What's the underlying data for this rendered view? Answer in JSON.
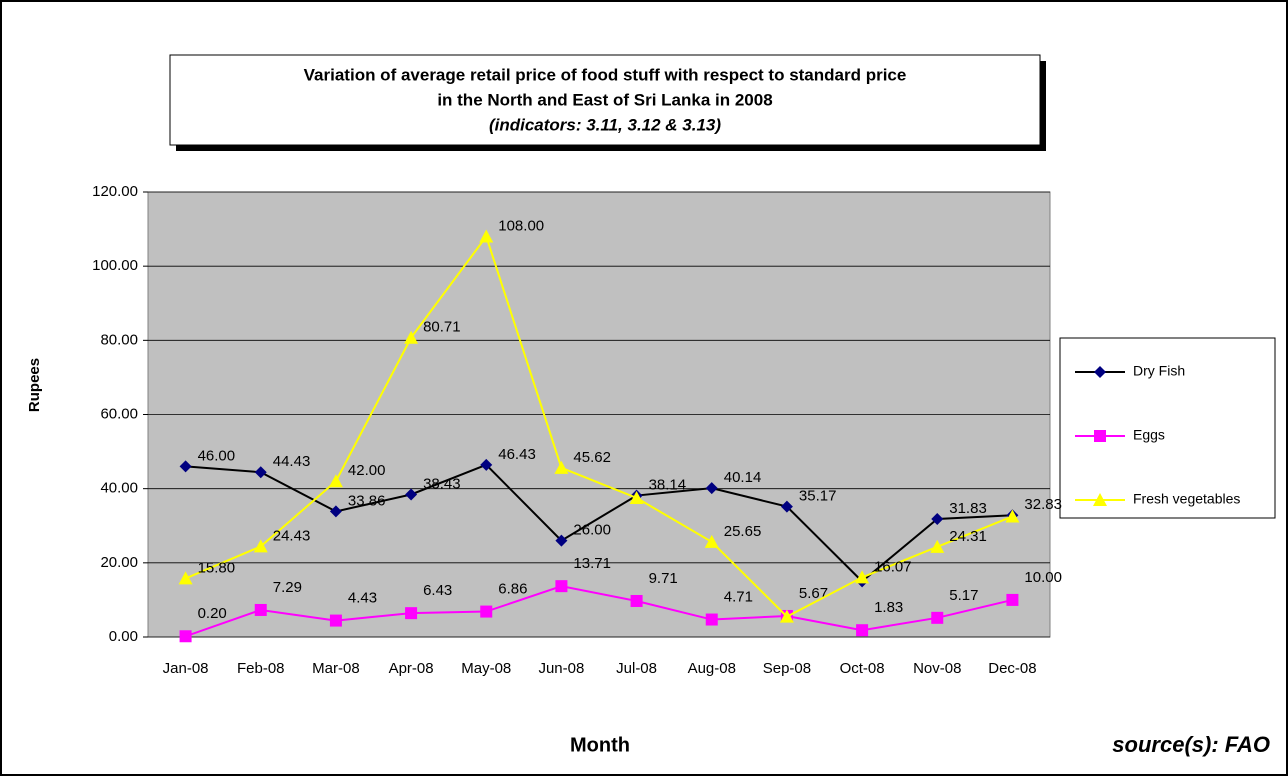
{
  "chart_data": {
    "type": "line",
    "title": "Variation of average retail price of food stuff with respect to standard price",
    "subtitle": "in the North and East of Sri Lanka in 2008",
    "subtitle2": "(indicators: 3.11, 3.12 & 3.13)",
    "x_label": "Month",
    "y_label": "Rupees",
    "source": "source(s): FAO",
    "categories": [
      "Jan-08",
      "Feb-08",
      "Mar-08",
      "Apr-08",
      "May-08",
      "Jun-08",
      "Jul-08",
      "Aug-08",
      "Sep-08",
      "Oct-08",
      "Nov-08",
      "Dec-08"
    ],
    "series": [
      {
        "name": "Dry Fish",
        "color": "#000080",
        "line_color": "#000000",
        "marker": "diamond",
        "values": [
          46.0,
          44.43,
          33.86,
          38.43,
          46.43,
          26.0,
          38.14,
          40.14,
          35.17,
          15.0,
          31.83,
          32.83
        ],
        "value_labels": [
          "46.00",
          "44.43",
          "33.86",
          "38.43",
          "46.43",
          "26.00",
          "38.14",
          "40.14",
          "35.17",
          null,
          "31.83",
          "32.83"
        ]
      },
      {
        "name": "Eggs",
        "color": "#ff00ff",
        "line_color": "#ff00ff",
        "marker": "square",
        "values": [
          0.2,
          7.29,
          4.43,
          6.43,
          6.86,
          13.71,
          9.71,
          4.71,
          5.67,
          1.83,
          5.17,
          10.0
        ],
        "value_labels": [
          "0.20",
          "7.29",
          "4.43",
          "6.43",
          "6.86",
          "13.71",
          "9.71",
          "4.71",
          "5.67",
          "1.83",
          "5.17",
          "10.00"
        ]
      },
      {
        "name": "Fresh vegetables",
        "color": "#ffff00",
        "line_color": "#ffff00",
        "marker": "triangle",
        "values": [
          15.8,
          24.43,
          42.0,
          80.71,
          108.0,
          45.62,
          37.5,
          25.65,
          5.5,
          16.07,
          24.31,
          32.5
        ],
        "value_labels": [
          "15.80",
          "24.43",
          "42.00",
          "80.71",
          "108.00",
          "45.62",
          null,
          "25.65",
          null,
          "16.07",
          "24.31",
          null
        ]
      }
    ],
    "ylim": [
      0,
      120
    ],
    "yticks": [
      {
        "value": 0,
        "label": "0.00"
      },
      {
        "value": 20,
        "label": "20.00"
      },
      {
        "value": 40,
        "label": "40.00"
      },
      {
        "value": 60,
        "label": "60.00"
      },
      {
        "value": 80,
        "label": "80.00"
      },
      {
        "value": 100,
        "label": "100.00"
      },
      {
        "value": 120,
        "label": "120.00"
      }
    ],
    "grid": true,
    "legend": "right",
    "plot_background": "#c0c0c0"
  }
}
